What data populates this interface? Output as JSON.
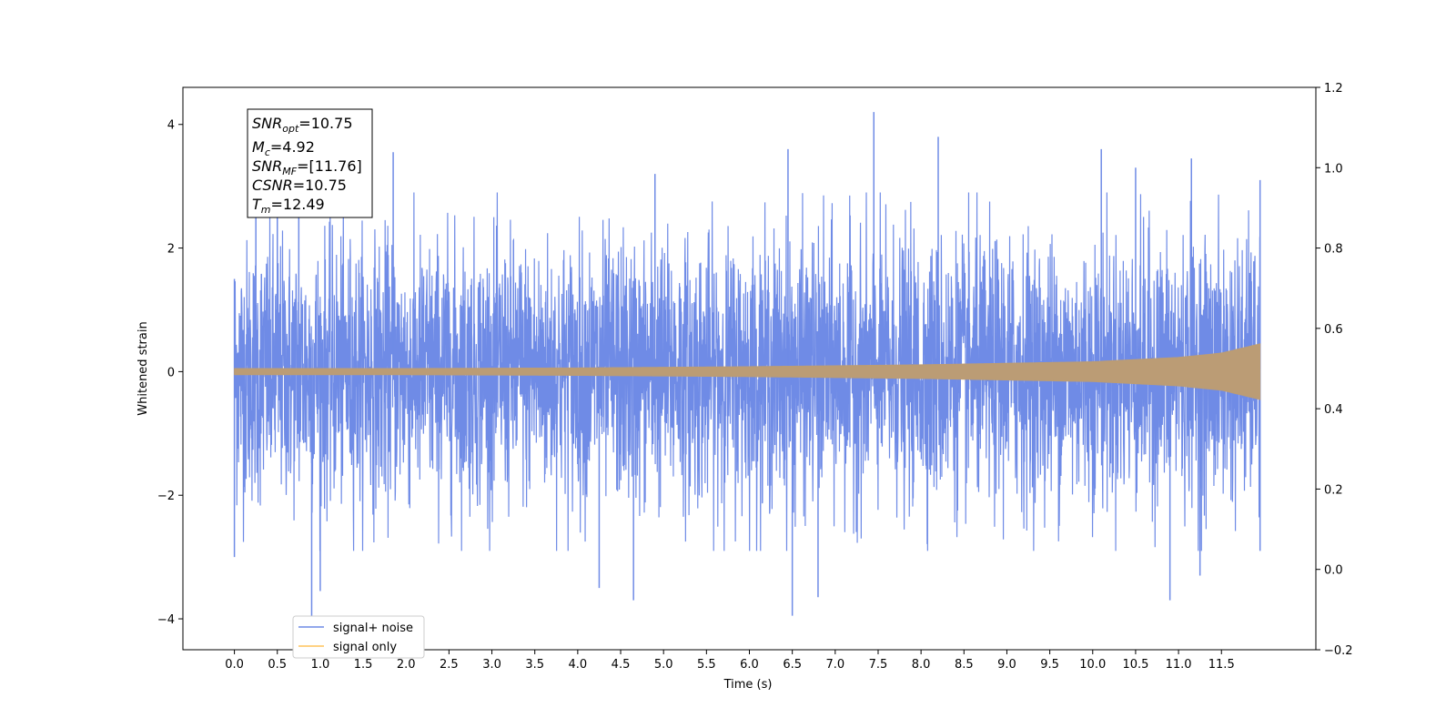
{
  "chart_data": {
    "type": "line",
    "xlabel": "Time (s)",
    "ylabel": "Whitened strain",
    "xlim": [
      -0.6,
      12.6
    ],
    "ylim": [
      -4.5,
      4.6
    ],
    "y2lim": [
      -0.2,
      1.2
    ],
    "xticks": [
      "0.0",
      "0.5",
      "1.0",
      "1.5",
      "2.0",
      "2.5",
      "3.0",
      "3.5",
      "4.0",
      "4.5",
      "5.0",
      "5.5",
      "6.0",
      "6.5",
      "7.0",
      "7.5",
      "8.0",
      "8.5",
      "9.0",
      "9.5",
      "10.0",
      "10.5",
      "11.0",
      "11.5"
    ],
    "yticks": [
      -4,
      -2,
      0,
      2,
      4
    ],
    "yticks_text": [
      "−4",
      "−2",
      "0",
      "2",
      "4"
    ],
    "y2ticks": [
      "−0.2",
      "0.0",
      "0.2",
      "0.4",
      "0.6",
      "0.8",
      "1.0",
      "1.2"
    ],
    "grid": false,
    "series": [
      {
        "name": "signal+ noise",
        "color": "#6f8be6",
        "description_range": [
          -3.95,
          4.2
        ],
        "peaks": [
          {
            "x": 0.0,
            "y": 1.5
          },
          {
            "x": 0.25,
            "y": 3.3
          },
          {
            "x": 0.5,
            "y": 3.2
          },
          {
            "x": 0.75,
            "y": 3.3
          },
          {
            "x": 1.85,
            "y": 3.55
          },
          {
            "x": 4.9,
            "y": 3.2
          },
          {
            "x": 6.45,
            "y": 3.6
          },
          {
            "x": 7.45,
            "y": 4.2
          },
          {
            "x": 8.2,
            "y": 3.8
          },
          {
            "x": 10.1,
            "y": 3.6
          },
          {
            "x": 10.5,
            "y": 3.3
          },
          {
            "x": 11.15,
            "y": 3.45
          },
          {
            "x": 11.95,
            "y": 3.1
          }
        ],
        "troughs": [
          {
            "x": 0.0,
            "y": -3.0
          },
          {
            "x": 0.9,
            "y": -3.95
          },
          {
            "x": 1.0,
            "y": -3.55
          },
          {
            "x": 4.25,
            "y": -3.5
          },
          {
            "x": 4.65,
            "y": -3.7
          },
          {
            "x": 6.5,
            "y": -3.95
          },
          {
            "x": 6.8,
            "y": -3.65
          },
          {
            "x": 10.9,
            "y": -3.7
          },
          {
            "x": 11.25,
            "y": -3.3
          },
          {
            "x": 11.95,
            "y": -2.9
          }
        ]
      },
      {
        "name": "signal only",
        "color": "#ffc45a",
        "envelope": [
          {
            "x": 0.0,
            "a": 0.05
          },
          {
            "x": 2.0,
            "a": 0.05
          },
          {
            "x": 4.0,
            "a": 0.06
          },
          {
            "x": 6.0,
            "a": 0.08
          },
          {
            "x": 8.0,
            "a": 0.11
          },
          {
            "x": 10.0,
            "a": 0.16
          },
          {
            "x": 11.0,
            "a": 0.23
          },
          {
            "x": 11.5,
            "a": 0.3
          },
          {
            "x": 11.95,
            "a": 0.45
          }
        ]
      }
    ],
    "legend": {
      "placement": "lower-left",
      "entries": [
        "signal+ noise",
        "signal only"
      ]
    },
    "annotation": {
      "lines": [
        {
          "main": "SNR",
          "sub": "opt",
          "value": "=10.75"
        },
        {
          "main": "M",
          "sub": "c",
          "value": "=4.92"
        },
        {
          "main": "SNR",
          "sub": "MF",
          "value": "=[11.76]"
        },
        {
          "main": "CSNR",
          "sub": "",
          "value": "=10.75"
        },
        {
          "main": "T",
          "sub": "m",
          "value": "=12.49"
        }
      ]
    }
  }
}
